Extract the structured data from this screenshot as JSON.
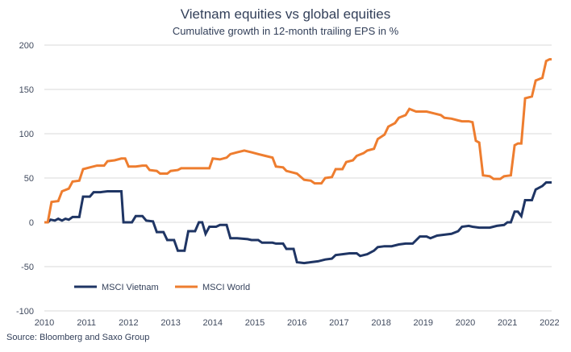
{
  "chart_data": {
    "type": "line",
    "title": "Vietnam equities vs global equities",
    "subtitle": "Cumulative growth in 12-month trailing EPS in %",
    "source": "Source: Bloomberg and Saxo Group",
    "xlabel": "",
    "ylabel": "",
    "xlim": [
      2010,
      2022.05
    ],
    "ylim": [
      -100,
      200
    ],
    "x_ticks": [
      "2010",
      "2011",
      "2012",
      "2013",
      "2014",
      "2015",
      "2016",
      "2017",
      "2018",
      "2019",
      "2020",
      "2021",
      "2022"
    ],
    "y_ticks": [
      "200",
      "150",
      "100",
      "50",
      "0",
      "-50",
      "-100"
    ],
    "legend_position": "bottom-left",
    "series": [
      {
        "name": "MSCI Vietnam",
        "color": "#1f3564",
        "points": [
          [
            2010.0,
            0
          ],
          [
            2010.08,
            0
          ],
          [
            2010.15,
            3
          ],
          [
            2010.25,
            2
          ],
          [
            2010.33,
            4
          ],
          [
            2010.42,
            2
          ],
          [
            2010.5,
            4
          ],
          [
            2010.58,
            3
          ],
          [
            2010.67,
            6
          ],
          [
            2010.83,
            6
          ],
          [
            2010.92,
            29
          ],
          [
            2011.08,
            29
          ],
          [
            2011.17,
            34
          ],
          [
            2011.33,
            34
          ],
          [
            2011.5,
            35
          ],
          [
            2011.67,
            35
          ],
          [
            2011.83,
            35
          ],
          [
            2011.88,
            0
          ],
          [
            2012.08,
            0
          ],
          [
            2012.17,
            7
          ],
          [
            2012.33,
            7
          ],
          [
            2012.42,
            2
          ],
          [
            2012.58,
            1
          ],
          [
            2012.67,
            -11
          ],
          [
            2012.83,
            -11
          ],
          [
            2012.92,
            -20
          ],
          [
            2013.08,
            -20
          ],
          [
            2013.17,
            -32
          ],
          [
            2013.33,
            -32
          ],
          [
            2013.42,
            -10
          ],
          [
            2013.58,
            -10
          ],
          [
            2013.67,
            0
          ],
          [
            2013.75,
            0
          ],
          [
            2013.83,
            -13
          ],
          [
            2013.92,
            -5
          ],
          [
            2014.08,
            -5
          ],
          [
            2014.17,
            -3
          ],
          [
            2014.33,
            -3
          ],
          [
            2014.42,
            -18
          ],
          [
            2014.58,
            -18
          ],
          [
            2014.83,
            -19
          ],
          [
            2014.92,
            -20
          ],
          [
            2015.08,
            -20
          ],
          [
            2015.17,
            -23
          ],
          [
            2015.42,
            -23
          ],
          [
            2015.5,
            -24
          ],
          [
            2015.67,
            -24
          ],
          [
            2015.75,
            -30
          ],
          [
            2015.92,
            -30
          ],
          [
            2016.0,
            -45
          ],
          [
            2016.17,
            -46
          ],
          [
            2016.33,
            -45
          ],
          [
            2016.5,
            -44
          ],
          [
            2016.67,
            -42
          ],
          [
            2016.83,
            -41
          ],
          [
            2016.92,
            -37
          ],
          [
            2017.08,
            -36
          ],
          [
            2017.25,
            -35
          ],
          [
            2017.42,
            -35
          ],
          [
            2017.5,
            -38
          ],
          [
            2017.67,
            -36
          ],
          [
            2017.83,
            -32
          ],
          [
            2017.92,
            -28
          ],
          [
            2018.08,
            -27
          ],
          [
            2018.25,
            -27
          ],
          [
            2018.42,
            -25
          ],
          [
            2018.58,
            -24
          ],
          [
            2018.75,
            -24
          ],
          [
            2018.92,
            -16
          ],
          [
            2019.08,
            -16
          ],
          [
            2019.17,
            -18
          ],
          [
            2019.33,
            -15
          ],
          [
            2019.5,
            -14
          ],
          [
            2019.67,
            -13
          ],
          [
            2019.83,
            -10
          ],
          [
            2019.92,
            -5
          ],
          [
            2020.08,
            -4
          ],
          [
            2020.17,
            -5
          ],
          [
            2020.33,
            -6
          ],
          [
            2020.58,
            -6
          ],
          [
            2020.75,
            -4
          ],
          [
            2020.92,
            -3
          ],
          [
            2021.0,
            0
          ],
          [
            2021.08,
            0
          ],
          [
            2021.17,
            12
          ],
          [
            2021.25,
            12
          ],
          [
            2021.33,
            7
          ],
          [
            2021.42,
            25
          ],
          [
            2021.58,
            25
          ],
          [
            2021.67,
            37
          ],
          [
            2021.83,
            41
          ],
          [
            2021.92,
            45
          ],
          [
            2022.05,
            45
          ]
        ]
      },
      {
        "name": "MSCI World",
        "color": "#ee7d2f",
        "points": [
          [
            2010.0,
            0
          ],
          [
            2010.08,
            0
          ],
          [
            2010.17,
            23
          ],
          [
            2010.33,
            24
          ],
          [
            2010.42,
            35
          ],
          [
            2010.58,
            38
          ],
          [
            2010.67,
            46
          ],
          [
            2010.83,
            47
          ],
          [
            2010.92,
            60
          ],
          [
            2011.08,
            62
          ],
          [
            2011.25,
            64
          ],
          [
            2011.42,
            64
          ],
          [
            2011.5,
            69
          ],
          [
            2011.67,
            70
          ],
          [
            2011.83,
            72
          ],
          [
            2011.92,
            72
          ],
          [
            2012.0,
            63
          ],
          [
            2012.17,
            63
          ],
          [
            2012.33,
            64
          ],
          [
            2012.42,
            64
          ],
          [
            2012.5,
            59
          ],
          [
            2012.67,
            58
          ],
          [
            2012.75,
            55
          ],
          [
            2012.92,
            55
          ],
          [
            2013.0,
            58
          ],
          [
            2013.17,
            59
          ],
          [
            2013.25,
            61
          ],
          [
            2013.5,
            61
          ],
          [
            2013.75,
            61
          ],
          [
            2013.92,
            61
          ],
          [
            2014.0,
            72
          ],
          [
            2014.17,
            71
          ],
          [
            2014.33,
            73
          ],
          [
            2014.42,
            77
          ],
          [
            2014.58,
            79
          ],
          [
            2014.75,
            81
          ],
          [
            2014.92,
            79
          ],
          [
            2015.08,
            77
          ],
          [
            2015.25,
            75
          ],
          [
            2015.42,
            73
          ],
          [
            2015.5,
            63
          ],
          [
            2015.67,
            62
          ],
          [
            2015.75,
            58
          ],
          [
            2015.92,
            56
          ],
          [
            2016.0,
            55
          ],
          [
            2016.17,
            48
          ],
          [
            2016.33,
            47
          ],
          [
            2016.42,
            44
          ],
          [
            2016.58,
            44
          ],
          [
            2016.67,
            50
          ],
          [
            2016.83,
            51
          ],
          [
            2016.92,
            60
          ],
          [
            2017.08,
            60
          ],
          [
            2017.17,
            68
          ],
          [
            2017.33,
            70
          ],
          [
            2017.42,
            75
          ],
          [
            2017.58,
            78
          ],
          [
            2017.67,
            81
          ],
          [
            2017.83,
            83
          ],
          [
            2017.92,
            94
          ],
          [
            2018.08,
            99
          ],
          [
            2018.17,
            108
          ],
          [
            2018.33,
            112
          ],
          [
            2018.42,
            118
          ],
          [
            2018.58,
            121
          ],
          [
            2018.67,
            128
          ],
          [
            2018.83,
            125
          ],
          [
            2019.08,
            125
          ],
          [
            2019.25,
            123
          ],
          [
            2019.42,
            121
          ],
          [
            2019.5,
            118
          ],
          [
            2019.67,
            117
          ],
          [
            2019.83,
            115
          ],
          [
            2019.92,
            114
          ],
          [
            2020.08,
            114
          ],
          [
            2020.17,
            113
          ],
          [
            2020.25,
            92
          ],
          [
            2020.33,
            90
          ],
          [
            2020.42,
            53
          ],
          [
            2020.58,
            52
          ],
          [
            2020.67,
            49
          ],
          [
            2020.83,
            49
          ],
          [
            2020.92,
            52
          ],
          [
            2021.08,
            53
          ],
          [
            2021.17,
            87
          ],
          [
            2021.25,
            89
          ],
          [
            2021.33,
            89
          ],
          [
            2021.42,
            140
          ],
          [
            2021.58,
            142
          ],
          [
            2021.67,
            160
          ],
          [
            2021.83,
            163
          ],
          [
            2021.92,
            182
          ],
          [
            2022.0,
            184
          ],
          [
            2022.05,
            184
          ]
        ]
      }
    ]
  }
}
